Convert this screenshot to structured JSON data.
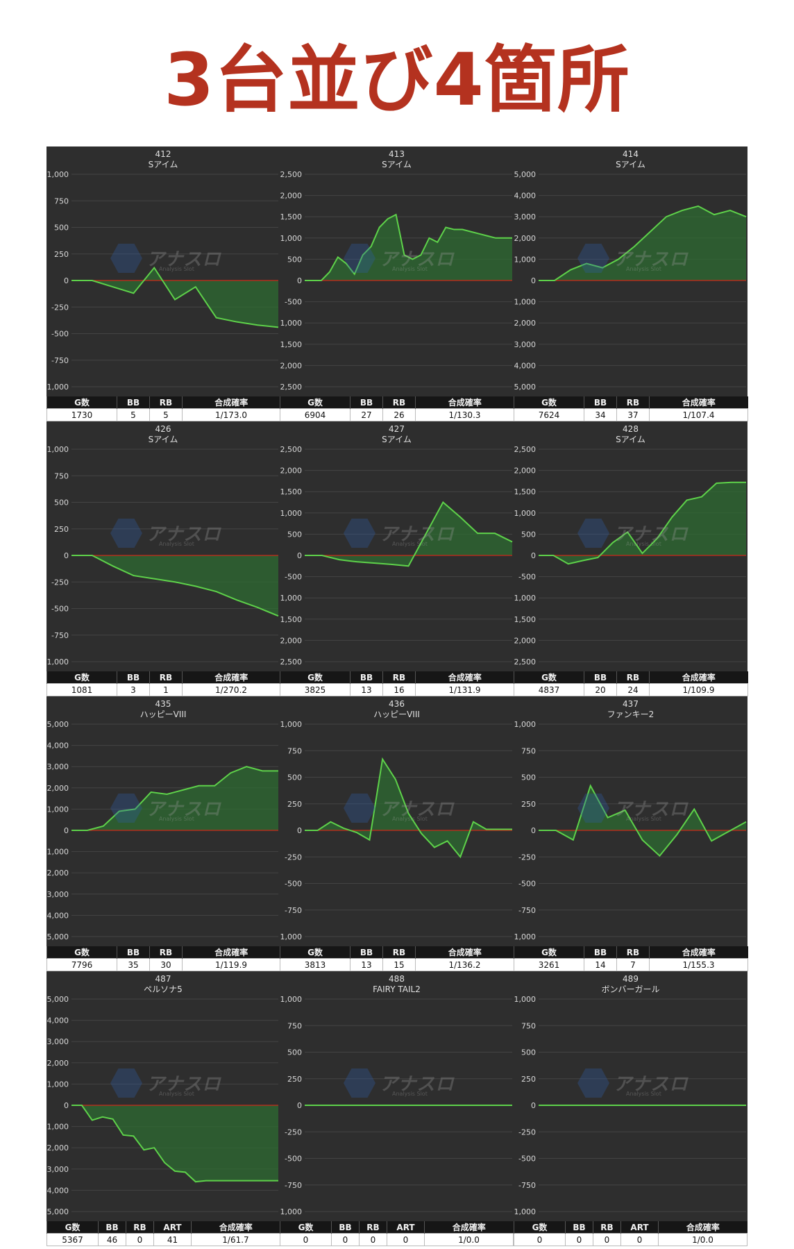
{
  "title": "3台並び4箇所",
  "colors": {
    "line": "#5ed24a",
    "fill": "#2e6b31",
    "zero_line": "#cc2a1a",
    "background": "#2e2e2e",
    "grid": "#444444"
  },
  "watermark": {
    "text": "アナスロ",
    "sub": "Analysis Slot"
  },
  "chart_data": [
    {
      "type": "area",
      "machine": "412",
      "name": "Sアイム",
      "ylim": [
        -1000,
        1000
      ],
      "yticks": [
        1000,
        750,
        500,
        250,
        0,
        -250,
        -500,
        -750,
        -1000
      ],
      "x": [
        0,
        1,
        2,
        3,
        4,
        5,
        6,
        7,
        8,
        9,
        10
      ],
      "y": [
        0,
        0,
        -60,
        -120,
        120,
        -180,
        -60,
        -350,
        -390,
        -420,
        -440
      ],
      "stats": {
        "headers": [
          "G数",
          "BB",
          "RB",
          "合成確率"
        ],
        "values": [
          "1730",
          "5",
          "5",
          "1/173.0"
        ]
      }
    },
    {
      "type": "area",
      "machine": "413",
      "name": "Sアイム",
      "ylim": [
        -2500,
        2500
      ],
      "yticks": [
        2500,
        2000,
        1500,
        1000,
        500,
        0,
        -500,
        -1000,
        -1500,
        -2000,
        -2500
      ],
      "x": [
        0,
        1,
        2,
        3,
        4,
        5,
        6,
        7,
        8,
        9,
        10,
        11,
        12,
        13,
        14,
        15,
        16,
        17,
        18,
        19,
        20,
        21,
        22,
        23,
        24,
        25
      ],
      "y": [
        0,
        0,
        0,
        200,
        550,
        400,
        150,
        600,
        800,
        1250,
        1450,
        1550,
        600,
        500,
        600,
        1000,
        900,
        1250,
        1200,
        1200,
        1150,
        1100,
        1050,
        1000,
        1000,
        1000
      ],
      "stats": {
        "headers": [
          "G数",
          "BB",
          "RB",
          "合成確率"
        ],
        "values": [
          "6904",
          "27",
          "26",
          "1/130.3"
        ]
      }
    },
    {
      "type": "area",
      "machine": "414",
      "name": "Sアイム",
      "ylim": [
        -5000,
        5000
      ],
      "yticks": [
        5000,
        4000,
        3000,
        2000,
        1000,
        0,
        -1000,
        -2000,
        -3000,
        -4000,
        -5000
      ],
      "x": [
        0,
        1,
        2,
        3,
        4,
        5,
        6,
        7,
        8,
        9,
        10,
        11,
        12,
        13
      ],
      "y": [
        0,
        0,
        500,
        800,
        600,
        1000,
        1600,
        2300,
        3000,
        3300,
        3500,
        3100,
        3300,
        3000
      ],
      "stats": {
        "headers": [
          "G数",
          "BB",
          "RB",
          "合成確率"
        ],
        "values": [
          "7624",
          "34",
          "37",
          "1/107.4"
        ]
      }
    },
    {
      "type": "area",
      "machine": "426",
      "name": "Sアイム",
      "ylim": [
        -1000,
        1000
      ],
      "yticks": [
        1000,
        750,
        500,
        250,
        0,
        -250,
        -500,
        -750,
        -1000
      ],
      "x": [
        0,
        1,
        2,
        3,
        4,
        5,
        6,
        7,
        8,
        9,
        10
      ],
      "y": [
        0,
        0,
        -100,
        -190,
        -220,
        -250,
        -290,
        -340,
        -420,
        -490,
        -570
      ],
      "stats": {
        "headers": [
          "G数",
          "BB",
          "RB",
          "合成確率"
        ],
        "values": [
          "1081",
          "3",
          "1",
          "1/270.2"
        ]
      }
    },
    {
      "type": "area",
      "machine": "427",
      "name": "Sアイム",
      "ylim": [
        -2500,
        2500
      ],
      "yticks": [
        2500,
        2000,
        1500,
        1000,
        500,
        0,
        -500,
        -1000,
        -1500,
        -2000,
        -2500
      ],
      "x": [
        0,
        1,
        2,
        3,
        4,
        5,
        6,
        7,
        8,
        9,
        10,
        11,
        12
      ],
      "y": [
        0,
        0,
        -100,
        -150,
        -180,
        -210,
        -250,
        500,
        1250,
        900,
        520,
        520,
        320
      ],
      "stats": {
        "headers": [
          "G数",
          "BB",
          "RB",
          "合成確率"
        ],
        "values": [
          "3825",
          "13",
          "16",
          "1/131.9"
        ]
      }
    },
    {
      "type": "area",
      "machine": "428",
      "name": "Sアイム",
      "ylim": [
        -2500,
        2500
      ],
      "yticks": [
        2500,
        2000,
        1500,
        1000,
        500,
        0,
        -500,
        -1000,
        -1500,
        -2000,
        -2500
      ],
      "x": [
        0,
        1,
        2,
        3,
        4,
        5,
        6,
        7,
        8,
        9,
        10,
        11,
        12,
        13,
        14
      ],
      "y": [
        0,
        0,
        -200,
        -120,
        -50,
        300,
        550,
        50,
        400,
        900,
        1300,
        1380,
        1700,
        1720,
        1720
      ],
      "stats": {
        "headers": [
          "G数",
          "BB",
          "RB",
          "合成確率"
        ],
        "values": [
          "4837",
          "20",
          "24",
          "1/109.9"
        ]
      }
    },
    {
      "type": "area",
      "machine": "435",
      "name": "ハッピーVIII",
      "ylim": [
        -5000,
        5000
      ],
      "yticks": [
        5000,
        4000,
        3000,
        2000,
        1000,
        0,
        -1000,
        -2000,
        -3000,
        -4000,
        -5000
      ],
      "x": [
        0,
        1,
        2,
        3,
        4,
        5,
        6,
        7,
        8,
        9,
        10,
        11,
        12,
        13
      ],
      "y": [
        0,
        0,
        200,
        900,
        1000,
        1800,
        1700,
        1900,
        2100,
        2100,
        2700,
        3000,
        2800,
        2800
      ],
      "stats": {
        "headers": [
          "G数",
          "BB",
          "RB",
          "合成確率"
        ],
        "values": [
          "7796",
          "35",
          "30",
          "1/119.9"
        ]
      }
    },
    {
      "type": "area",
      "machine": "436",
      "name": "ハッピーVIII",
      "ylim": [
        -1000,
        1000
      ],
      "yticks": [
        1000,
        750,
        500,
        250,
        0,
        -250,
        -500,
        -750,
        -1000
      ],
      "x": [
        0,
        1,
        2,
        3,
        4,
        5,
        6,
        7,
        8,
        9,
        10,
        11,
        12,
        13,
        14,
        15,
        16
      ],
      "y": [
        0,
        0,
        80,
        20,
        -20,
        -90,
        670,
        480,
        160,
        -30,
        -160,
        -100,
        -250,
        80,
        10,
        10,
        10
      ],
      "stats": {
        "headers": [
          "G数",
          "BB",
          "RB",
          "合成確率"
        ],
        "values": [
          "3813",
          "13",
          "15",
          "1/136.2"
        ]
      }
    },
    {
      "type": "area",
      "machine": "437",
      "name": "ファンキー2",
      "ylim": [
        -1000,
        1000
      ],
      "yticks": [
        1000,
        750,
        500,
        250,
        0,
        -250,
        -500,
        -750,
        -1000
      ],
      "x": [
        0,
        1,
        2,
        3,
        4,
        5,
        6,
        7,
        8,
        9,
        10,
        11,
        12
      ],
      "y": [
        0,
        0,
        -90,
        420,
        120,
        190,
        -90,
        -240,
        -40,
        200,
        -100,
        -10,
        80
      ],
      "stats": {
        "headers": [
          "G数",
          "BB",
          "RB",
          "合成確率"
        ],
        "values": [
          "3261",
          "14",
          "7",
          "1/155.3"
        ]
      }
    },
    {
      "type": "area",
      "machine": "487",
      "name": "ペルソナ5",
      "ylim": [
        -5000,
        5000
      ],
      "yticks": [
        5000,
        4000,
        3000,
        2000,
        1000,
        0,
        -1000,
        -2000,
        -3000,
        -4000,
        -5000
      ],
      "x": [
        0,
        1,
        2,
        3,
        4,
        5,
        6,
        7,
        8,
        9,
        10,
        11,
        12,
        13,
        14,
        15,
        16,
        17,
        18,
        19,
        20
      ],
      "y": [
        0,
        0,
        -700,
        -550,
        -650,
        -1400,
        -1450,
        -2100,
        -2000,
        -2700,
        -3100,
        -3150,
        -3600,
        -3550,
        -3550,
        -3550,
        -3550,
        -3550,
        -3550,
        -3550,
        -3550
      ],
      "stats": {
        "headers": [
          "G数",
          "BB",
          "RB",
          "ART",
          "合成確率"
        ],
        "values": [
          "5367",
          "46",
          "0",
          "41",
          "1/61.7"
        ]
      }
    },
    {
      "type": "area",
      "machine": "488",
      "name": "FAIRY TAIL2",
      "ylim": [
        -1000,
        1000
      ],
      "yticks": [
        1000,
        750,
        500,
        250,
        0,
        -250,
        -500,
        -750,
        -1000
      ],
      "x": [
        0,
        1
      ],
      "y": [
        0,
        0
      ],
      "stats": {
        "headers": [
          "G数",
          "BB",
          "RB",
          "ART",
          "合成確率"
        ],
        "values": [
          "0",
          "0",
          "0",
          "0",
          "1/0.0"
        ]
      }
    },
    {
      "type": "area",
      "machine": "489",
      "name": "ボンバーガール",
      "ylim": [
        -1000,
        1000
      ],
      "yticks": [
        1000,
        750,
        500,
        250,
        0,
        -250,
        -500,
        -750,
        -1000
      ],
      "x": [
        0,
        1
      ],
      "y": [
        0,
        0
      ],
      "stats": {
        "headers": [
          "G数",
          "BB",
          "RB",
          "ART",
          "合成確率"
        ],
        "values": [
          "0",
          "0",
          "0",
          "0",
          "1/0.0"
        ]
      }
    }
  ]
}
